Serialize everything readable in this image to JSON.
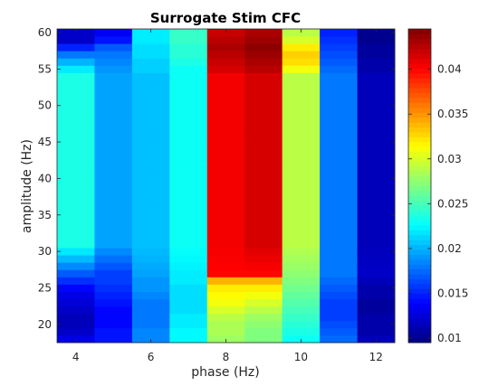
{
  "chart_data": {
    "type": "heatmap",
    "title": "Surrogate Stim CFC",
    "xlabel": "phase (Hz)",
    "ylabel": "amplitude (Hz)",
    "x": [
      3.5,
      4.5,
      5.5,
      6.5,
      7.5,
      8.5,
      9.5,
      10.5,
      11.5,
      12.5
    ],
    "y_start": 18,
    "y_step": 1,
    "y_count": 43,
    "xlim": [
      3.5,
      12.5
    ],
    "ylim": [
      17.5,
      60.5
    ],
    "x_ticks": [
      "4",
      "6",
      "8",
      "10",
      "12"
    ],
    "y_ticks": [
      "20",
      "25",
      "30",
      "35",
      "40",
      "45",
      "50",
      "55",
      "60"
    ],
    "colorbar": {
      "colormap": "jet",
      "clim": [
        0.0095,
        0.0445
      ],
      "ticks": [
        "0.01",
        "0.015",
        "0.02",
        "0.025",
        "0.03",
        "0.035",
        "0.04"
      ]
    },
    "columns": [
      {
        "phase": 3.5,
        "bottom_rows": [
          0.013,
          0.012,
          0.0115,
          0.0115,
          0.012,
          0.0125,
          0.013,
          0.014,
          0.0155,
          0.017
        ],
        "upper_value": 0.0235,
        "top_rows": [
          0.022,
          0.02,
          0.018,
          0.015,
          0.012,
          0.012
        ]
      },
      {
        "phase": 4.5,
        "bottom_rows": [
          0.0145,
          0.0145,
          0.014,
          0.014,
          0.014,
          0.0145,
          0.015,
          0.0155,
          0.016,
          0.016
        ],
        "upper_value": 0.0195,
        "top_rows": [
          0.019,
          0.0185,
          0.018,
          0.017,
          0.0145,
          0.0135
        ]
      },
      {
        "phase": 5.5,
        "bottom_rows": [
          0.0185,
          0.0185,
          0.018,
          0.018,
          0.018,
          0.018,
          0.0185,
          0.019,
          0.019,
          0.0195
        ],
        "upper_value": 0.0205,
        "top_rows": [
          0.021,
          0.021,
          0.0215,
          0.0215,
          0.022,
          0.022
        ]
      },
      {
        "phase": 6.5,
        "bottom_rows": [
          0.0225,
          0.0225,
          0.022,
          0.022,
          0.0215,
          0.0215,
          0.0215,
          0.0215,
          0.022,
          0.022
        ],
        "upper_value": 0.023,
        "top_rows": [
          0.023,
          0.0235,
          0.024,
          0.024,
          0.0245,
          0.0245
        ]
      },
      {
        "phase": 7.5,
        "bottom_rows": [
          0.028,
          0.0285,
          0.0285,
          0.029,
          0.03,
          0.031,
          0.0315,
          0.032,
          0.034,
          0.04
        ],
        "upper_value": 0.0405,
        "top_rows": [
          0.0415,
          0.042,
          0.0425,
          0.043,
          0.0425,
          0.042
        ]
      },
      {
        "phase": 8.5,
        "bottom_rows": [
          0.027,
          0.027,
          0.0275,
          0.028,
          0.029,
          0.03,
          0.031,
          0.032,
          0.034,
          0.04
        ],
        "upper_value": 0.0415,
        "top_rows": [
          0.0425,
          0.043,
          0.0435,
          0.044,
          0.0435,
          0.043
        ]
      },
      {
        "phase": 9.5,
        "bottom_rows": [
          0.023,
          0.0235,
          0.024,
          0.0245,
          0.025,
          0.0255,
          0.026,
          0.0265,
          0.027,
          0.0275
        ],
        "upper_value": 0.029,
        "top_rows": [
          0.031,
          0.0325,
          0.033,
          0.032,
          0.03,
          0.029
        ]
      },
      {
        "phase": 10.5,
        "bottom_rows": [
          0.0175,
          0.017,
          0.0165,
          0.016,
          0.016,
          0.016,
          0.0165,
          0.017,
          0.0175,
          0.018
        ],
        "upper_value": 0.018,
        "top_rows": [
          0.0175,
          0.017,
          0.0165,
          0.016,
          0.0155,
          0.015
        ]
      },
      {
        "phase": 11.5,
        "bottom_rows": [
          0.0115,
          0.011,
          0.011,
          0.011,
          0.0105,
          0.0105,
          0.011,
          0.011,
          0.0115,
          0.012
        ],
        "upper_value": 0.0115,
        "top_rows": [
          0.011,
          0.011,
          0.0105,
          0.0105,
          0.01,
          0.01
        ]
      }
    ]
  }
}
